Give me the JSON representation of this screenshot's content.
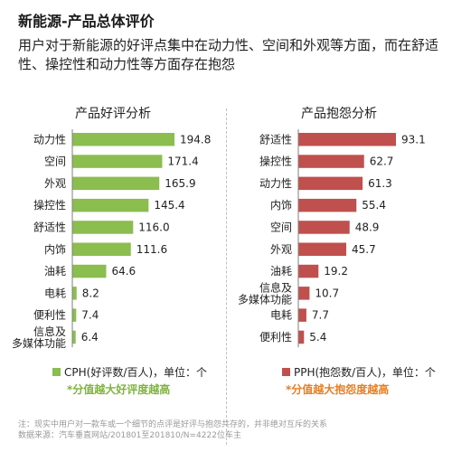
{
  "page": {
    "title": "新能源-产品总体评价",
    "intro": "用户对于新能源的好评点集中在动力性、空间和外观等方面，而在舒适性、操控性和动力性等方面存在抱怨",
    "footer_note": "注：现实中用户对一款车或一个细节的点评是好评与抱怨共存的，并非绝对互斥的关系",
    "footer_source": "数据来源：汽车垂直网站/201801至201810/N=4222位车主"
  },
  "colors": {
    "praise": "#8bbd4f",
    "complaint": "#c0504d",
    "praise_note": "#7fb33e",
    "complaint_note": "#e67e22"
  },
  "chart_data": [
    {
      "type": "bar",
      "orientation": "horizontal",
      "title": "产品好评分析",
      "categories": [
        "动力性",
        "空间",
        "外观",
        "操控性",
        "舒适性",
        "内饰",
        "油耗",
        "电耗",
        "便利性",
        "信息及\n多媒体功能"
      ],
      "values": [
        194.8,
        171.4,
        165.9,
        145.4,
        116.0,
        111.6,
        64.6,
        8.2,
        7.4,
        6.4
      ],
      "value_labels": [
        "194.8",
        "171.4",
        "165.9",
        "145.4",
        "116.0",
        "111.6",
        "64.6",
        "8.2",
        "7.4",
        "6.4"
      ],
      "xlim": [
        0,
        200
      ],
      "legend": "CPH(好评数/百人)，单位：个",
      "note": "*分值越大好评度越高",
      "grid": false
    },
    {
      "type": "bar",
      "orientation": "horizontal",
      "title": "产品抱怨分析",
      "categories": [
        "舒适性",
        "操控性",
        "动力性",
        "内饰",
        "空间",
        "外观",
        "油耗",
        "信息及\n多媒体功能",
        "电耗",
        "便利性"
      ],
      "values": [
        93.1,
        62.7,
        61.3,
        55.4,
        48.9,
        45.7,
        19.2,
        10.7,
        7.7,
        5.4
      ],
      "value_labels": [
        "93.1",
        "62.7",
        "61.3",
        "55.4",
        "48.9",
        "45.7",
        "19.2",
        "10.7",
        "7.7",
        "5.4"
      ],
      "xlim": [
        0,
        100
      ],
      "legend": "PPH(抱怨数/百人)，单位：个",
      "note": "*分值越大抱怨度越高",
      "grid": false
    }
  ]
}
